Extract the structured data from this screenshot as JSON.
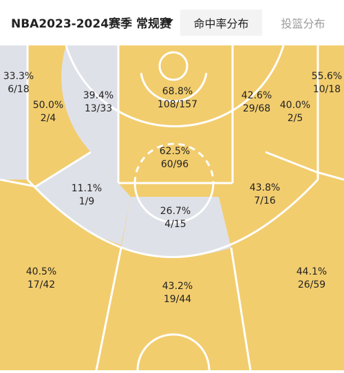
{
  "header": {
    "season_label": "NBA2023-2024赛季 常规赛",
    "tabs": [
      {
        "label": "命中率分布",
        "active": true
      },
      {
        "label": "投篮分布",
        "active": false
      }
    ]
  },
  "colors": {
    "hot": "#f2cd6e",
    "cold": "#dfe1e8",
    "line": "#ffffff"
  },
  "zones": [
    {
      "id": "left-corner-three",
      "pct": "33.3%",
      "made_att": "6/18",
      "tone": "cold"
    },
    {
      "id": "left-baseline-mid",
      "pct": "50.0%",
      "made_att": "2/4",
      "tone": "hot"
    },
    {
      "id": "left-elbow-mid",
      "pct": "39.4%",
      "made_att": "13/33",
      "tone": "cold"
    },
    {
      "id": "restricted-paint",
      "pct": "68.8%",
      "made_att": "108/157",
      "tone": "hot"
    },
    {
      "id": "right-elbow-mid",
      "pct": "42.6%",
      "made_att": "29/68",
      "tone": "hot"
    },
    {
      "id": "right-baseline-mid",
      "pct": "40.0%",
      "made_att": "2/5",
      "tone": "hot"
    },
    {
      "id": "right-corner-three",
      "pct": "55.6%",
      "made_att": "10/18",
      "tone": "hot"
    },
    {
      "id": "free-throw-area",
      "pct": "62.5%",
      "made_att": "60/96",
      "tone": "hot"
    },
    {
      "id": "left-wing-long-mid",
      "pct": "11.1%",
      "made_att": "1/9",
      "tone": "cold"
    },
    {
      "id": "top-long-mid",
      "pct": "26.7%",
      "made_att": "4/15",
      "tone": "cold"
    },
    {
      "id": "right-wing-long-mid",
      "pct": "43.8%",
      "made_att": "7/16",
      "tone": "hot"
    },
    {
      "id": "left-wing-three",
      "pct": "40.5%",
      "made_att": "17/42",
      "tone": "hot"
    },
    {
      "id": "top-three",
      "pct": "43.2%",
      "made_att": "19/44",
      "tone": "hot"
    },
    {
      "id": "right-wing-three",
      "pct": "44.1%",
      "made_att": "26/59",
      "tone": "hot"
    }
  ]
}
